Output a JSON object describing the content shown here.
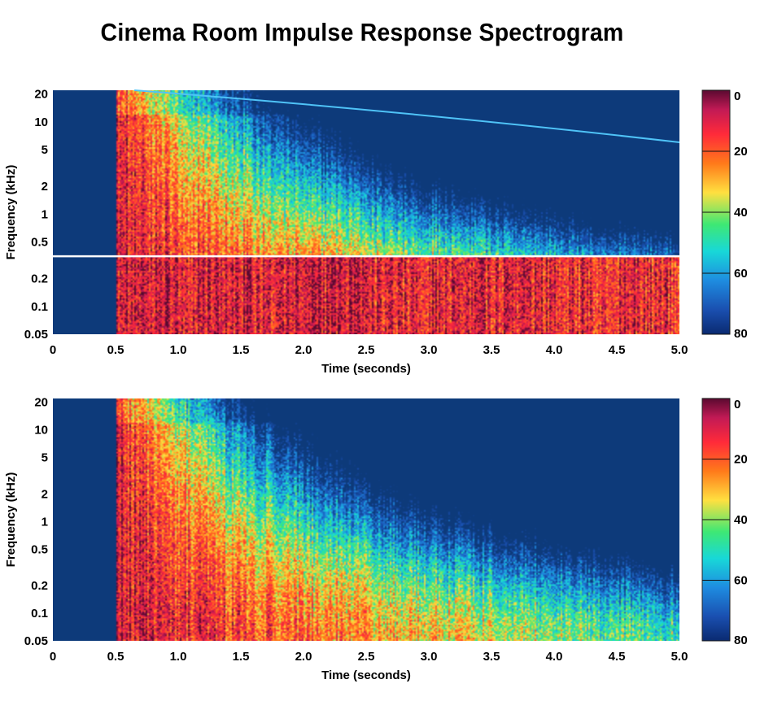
{
  "chart_data": [
    {
      "type": "heatmap",
      "title": "Cinema Room Impulse Response Spectrogram",
      "xlabel": "Time (seconds)",
      "ylabel": "Frequency (kHz)",
      "xlim": [
        0,
        5.0
      ],
      "ylim": [
        0.05,
        22
      ],
      "yscale": "log",
      "xticks": [
        "0",
        "0.5",
        "1.0",
        "1.5",
        "2.0",
        "2.5",
        "3.0",
        "3.5",
        "4.0",
        "4.5",
        "5.0"
      ],
      "yticks": [
        "20",
        "10",
        "5",
        "2",
        "1",
        "0.5",
        "0.2",
        "0.1",
        "0.05"
      ],
      "colorbar": {
        "ticks": [
          "0",
          "20",
          "40",
          "60",
          "80"
        ],
        "range": [
          0,
          80
        ],
        "colormap": "jet-reversed",
        "position": "right"
      },
      "onset_time": 0.5,
      "features": {
        "horizontal_line_freq_khz": 0.35,
        "sweep_tone_start_khz": 22,
        "sweep_tone_end_khz": 6
      },
      "colors": {
        "background": "#0d3a7a",
        "line": "#ffffff",
        "sweep": "#4fc3f7"
      }
    },
    {
      "type": "heatmap",
      "xlabel": "Time (seconds)",
      "ylabel": "Frequency (kHz)",
      "xlim": [
        0,
        5.0
      ],
      "ylim": [
        0.05,
        22
      ],
      "yscale": "log",
      "xticks": [
        "0",
        "0.5",
        "1.0",
        "1.5",
        "2.0",
        "2.5",
        "3.0",
        "3.5",
        "4.0",
        "4.5",
        "5.0"
      ],
      "yticks": [
        "20",
        "10",
        "5",
        "2",
        "1",
        "0.5",
        "0.2",
        "0.1",
        "0.05"
      ],
      "colorbar": {
        "ticks": [
          "0",
          "20",
          "40",
          "60",
          "80"
        ],
        "range": [
          0,
          80
        ],
        "colormap": "jet-reversed",
        "position": "right"
      },
      "onset_time": 0.5,
      "colors": {
        "background": "#0d3a7a"
      }
    }
  ]
}
